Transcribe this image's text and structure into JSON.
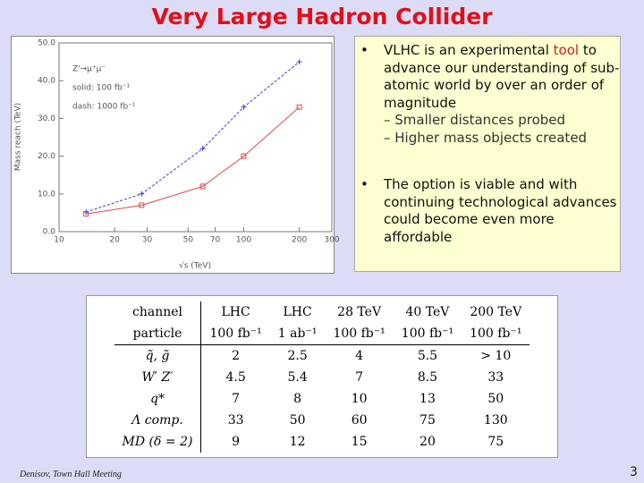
{
  "slide": {
    "title": "Very Large Hadron Collider",
    "bullets": [
      {
        "before": "VLHC is an experimental ",
        "highlight": "tool",
        "after": " to advance our understanding of sub-atomic world by over an order of magnitude",
        "sub": [
          "Smaller distances probed",
          "Higher mass objects created"
        ]
      },
      {
        "before": "The option is viable and with continuing technological advances could become even more affordable"
      }
    ],
    "table": {
      "rows": [
        [
          "channel",
          "LHC",
          "LHC",
          "28 TeV",
          "40 TeV",
          "200 TeV"
        ],
        [
          "particle",
          "100 fb⁻¹",
          "1 ab⁻¹",
          "100 fb⁻¹",
          "100 fb⁻¹",
          "100 fb⁻¹"
        ],
        [
          "q̃, g̃",
          "2",
          "2.5",
          "4",
          "5.5",
          "> 10"
        ],
        [
          "W′ Z′",
          "4.5",
          "5.4",
          "7",
          "8.5",
          "33"
        ],
        [
          "q*",
          "7",
          "8",
          "10",
          "13",
          "50"
        ],
        [
          "Λ comp.",
          "33",
          "50",
          "60",
          "75",
          "130"
        ],
        [
          "MD (δ = 2)",
          "9",
          "12",
          "15",
          "20",
          "75"
        ]
      ]
    },
    "footer": "Denisov, Town Hall Meeting",
    "page_number": "3"
  },
  "chart_data": {
    "type": "scatter",
    "xlabel": "√s (TeV)",
    "ylabel": "Mass reach (TeV)",
    "annotations": [
      "Z'→μ⁺μ⁻",
      "solid: 100 fb⁻¹",
      "dash: 1000 fb⁻¹"
    ],
    "x_log": true,
    "xlim": [
      10,
      300
    ],
    "xticks": [
      10,
      20,
      30,
      50,
      70,
      100,
      200,
      300
    ],
    "ylim": [
      0,
      50
    ],
    "yticks": [
      {
        "value": 0,
        "label": "0.0"
      },
      {
        "value": 10,
        "label": "10.0"
      },
      {
        "value": 20,
        "label": "20.0"
      },
      {
        "value": 30,
        "label": "30.0"
      },
      {
        "value": 40,
        "label": "40.0"
      },
      {
        "value": 50,
        "label": "50.0"
      }
    ],
    "x": [
      14,
      28,
      60,
      100,
      200
    ],
    "series": [
      {
        "color": "#e04848",
        "marker": "square",
        "dash": false,
        "values": [
          4.7,
          7,
          12,
          20,
          33
        ]
      },
      {
        "color": "#3c3cc8",
        "marker": "plus",
        "dash": true,
        "values": [
          5.2,
          10,
          22,
          33,
          45
        ]
      }
    ]
  }
}
